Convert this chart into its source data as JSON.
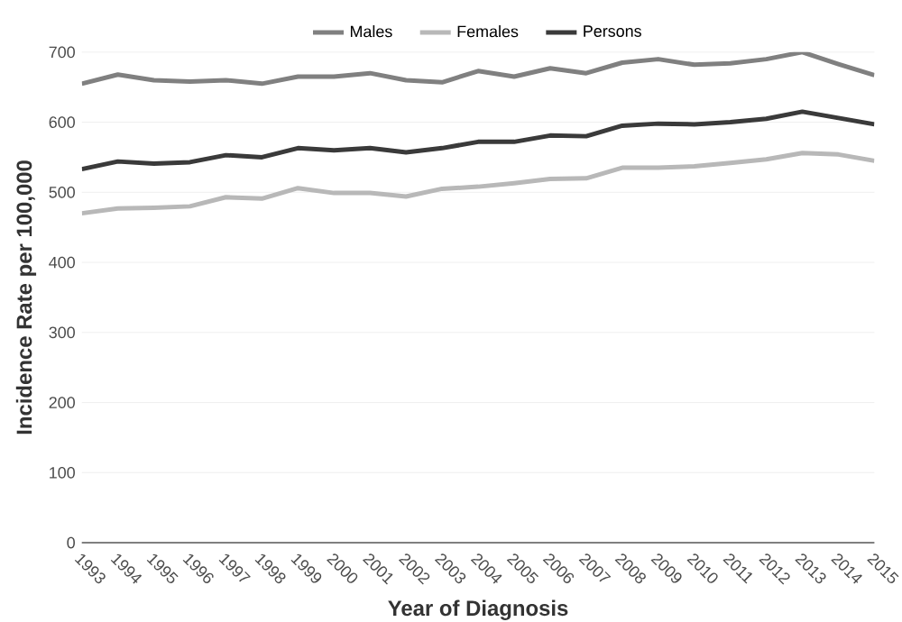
{
  "chart_data": {
    "type": "line",
    "xlabel": "Year of Diagnosis",
    "ylabel": "Incidence Rate per 100,000",
    "categories": [
      "1993",
      "1994",
      "1995",
      "1996",
      "1997",
      "1998",
      "1999",
      "2000",
      "2001",
      "2002",
      "2003",
      "2004",
      "2005",
      "2006",
      "2007",
      "2008",
      "2009",
      "2010",
      "2011",
      "2012",
      "2013",
      "2014",
      "2015"
    ],
    "series": [
      {
        "name": "Males",
        "color": "#808080",
        "values": [
          655,
          668,
          660,
          658,
          660,
          655,
          665,
          665,
          670,
          660,
          657,
          673,
          665,
          677,
          670,
          685,
          690,
          682,
          684,
          690,
          700,
          683,
          667
        ]
      },
      {
        "name": "Females",
        "color": "#b8b8b8",
        "values": [
          470,
          477,
          478,
          480,
          493,
          491,
          506,
          499,
          499,
          494,
          505,
          508,
          513,
          519,
          520,
          535,
          535,
          537,
          542,
          547,
          556,
          554,
          545
        ]
      },
      {
        "name": "Persons",
        "color": "#3a3a3a",
        "values": [
          533,
          544,
          541,
          543,
          553,
          550,
          563,
          560,
          563,
          557,
          563,
          572,
          572,
          581,
          580,
          595,
          598,
          597,
          600,
          605,
          615,
          606,
          597
        ]
      }
    ],
    "ylim": [
      0,
      700
    ],
    "yticks": [
      0,
      100,
      200,
      300,
      400,
      500,
      600,
      700
    ],
    "grid": "y",
    "legend": "top",
    "marker": "none",
    "line_style": "solid"
  }
}
